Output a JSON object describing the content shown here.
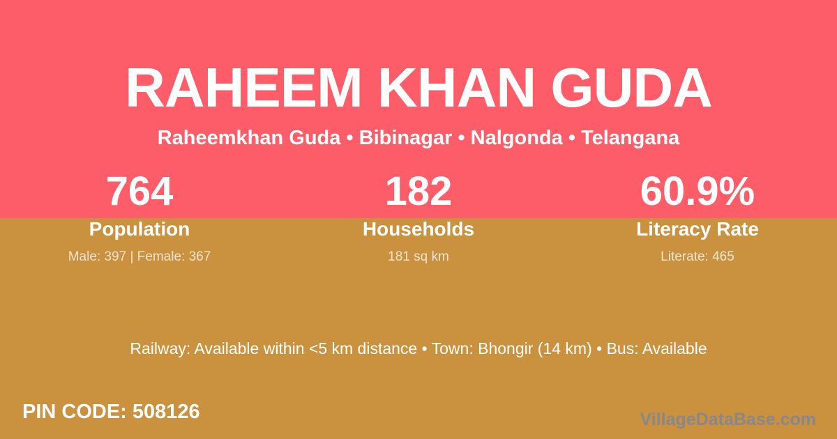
{
  "card": {
    "title": "RAHEEM KHAN GUDA",
    "subtitle": "Raheemkhan Guda  •  Bibinagar  •  Nalgonda  •  Telangana",
    "stats": [
      {
        "value": "764",
        "label": "Population",
        "detail": "Male: 397 | Female: 367"
      },
      {
        "value": "182",
        "label": "Households",
        "detail": "181 sq km"
      },
      {
        "value": "60.9%",
        "label": "Literacy Rate",
        "detail": "Literate: 465"
      }
    ],
    "transport_line": "Railway: Available within <5 km distance   •   Town: Bhongir (14 km)   •   Bus: Available",
    "pin_code": "PIN CODE: 508126",
    "watermark": "VillageDataBase.com",
    "colors": {
      "top_background": "#fd5c69",
      "bottom_background": "#ca913e",
      "text": "#ffffff",
      "muted_text": "rgba(255,255,255,0.75)",
      "watermark_text": "#87878c"
    }
  }
}
